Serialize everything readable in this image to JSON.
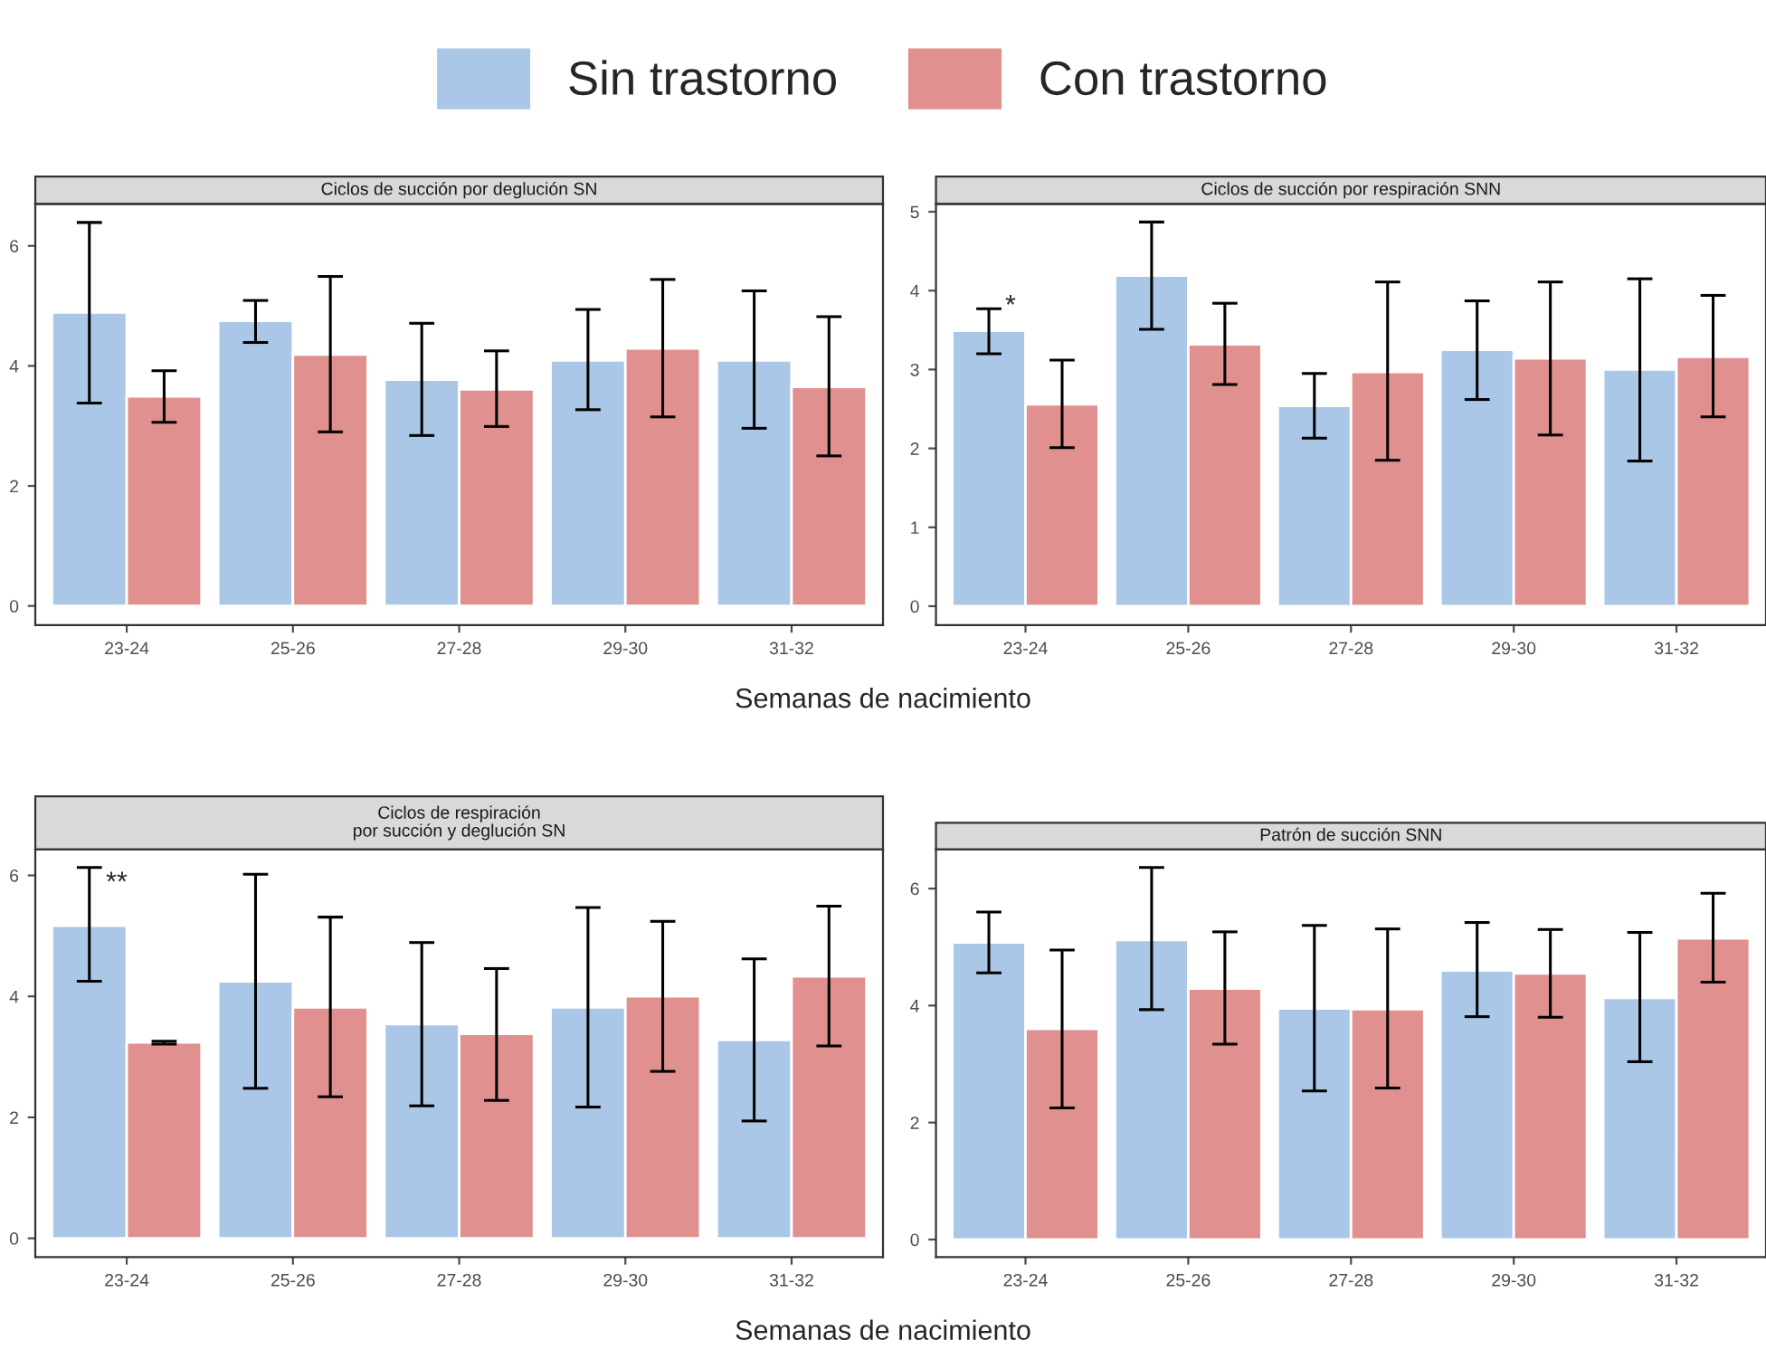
{
  "chart_data": [
    {
      "type": "bar",
      "title": "Ciclos de succión por deglución SN",
      "xlabel": "Semanas de nacimiento",
      "legend": "top",
      "grid": false,
      "categories": [
        "23-24",
        "25-26",
        "27-28",
        "29-30",
        "31-32"
      ],
      "ylim": [
        -0.32,
        6.7
      ],
      "yticks": [
        0,
        2,
        4,
        6
      ],
      "series": [
        {
          "name": "Sin trastorno",
          "color": "#aac7e8",
          "values": [
            4.89,
            4.75,
            3.77,
            4.09,
            4.09
          ],
          "errors": [
            [
              3.38,
              6.39
            ],
            [
              4.39,
              5.09
            ],
            [
              2.84,
              4.71
            ],
            [
              3.27,
              4.94
            ],
            [
              2.96,
              5.25
            ]
          ]
        },
        {
          "name": "Con trastorno",
          "color": "#e0908e",
          "values": [
            3.49,
            4.19,
            3.61,
            4.29,
            3.65
          ],
          "errors": [
            [
              3.06,
              3.92
            ],
            [
              2.9,
              5.49
            ],
            [
              2.99,
              4.25
            ],
            [
              3.15,
              5.44
            ],
            [
              2.5,
              4.82
            ]
          ]
        }
      ]
    },
    {
      "type": "bar",
      "title": "Ciclos de succión por respiración SNN",
      "grid": false,
      "categories": [
        "23-24",
        "25-26",
        "27-28",
        "29-30",
        "31-32"
      ],
      "ylim": [
        -0.24,
        5.1
      ],
      "yticks": [
        0,
        1,
        2,
        3,
        4,
        5
      ],
      "annotations": [
        "*"
      ],
      "series": [
        {
          "color": "#aac7e8",
          "values": [
            3.49,
            4.19,
            2.54,
            3.25,
            3.0
          ],
          "errors": [
            [
              3.2,
              3.77
            ],
            [
              3.51,
              4.87
            ],
            [
              2.13,
              2.95
            ],
            [
              2.62,
              3.87
            ],
            [
              1.84,
              4.15
            ]
          ]
        },
        {
          "color": "#e0908e",
          "values": [
            2.56,
            3.32,
            2.97,
            3.14,
            3.16
          ],
          "errors": [
            [
              2.01,
              3.12
            ],
            [
              2.81,
              3.84
            ],
            [
              1.85,
              4.11
            ],
            [
              2.17,
              4.11
            ],
            [
              2.4,
              3.94
            ]
          ]
        }
      ]
    },
    {
      "type": "bar",
      "title": "Ciclos de respiración\npor succión y deglución SN",
      "xlabel": "Semanas de nacimiento",
      "grid": false,
      "categories": [
        "23-24",
        "25-26",
        "27-28",
        "29-30",
        "31-32"
      ],
      "ylim": [
        -0.31,
        6.43
      ],
      "yticks": [
        0,
        2,
        4,
        6
      ],
      "annotations": [
        "**"
      ],
      "series": [
        {
          "color": "#aac7e8",
          "values": [
            5.17,
            4.25,
            3.54,
            3.82,
            3.28
          ],
          "errors": [
            [
              4.25,
              6.13
            ],
            [
              2.48,
              6.02
            ],
            [
              2.19,
              4.89
            ],
            [
              2.17,
              5.47
            ],
            [
              1.94,
              4.62
            ]
          ]
        },
        {
          "color": "#e0908e",
          "values": [
            3.24,
            3.82,
            3.38,
            4.0,
            4.33
          ],
          "errors": [
            [
              3.21,
              3.26
            ],
            [
              2.34,
              5.31
            ],
            [
              2.28,
              4.46
            ],
            [
              2.76,
              5.24
            ],
            [
              3.18,
              5.49
            ]
          ]
        }
      ]
    },
    {
      "type": "bar",
      "title": "Patrón de succión SNN",
      "grid": false,
      "categories": [
        "23-24",
        "25-26",
        "27-28",
        "29-30",
        "31-32"
      ],
      "ylim": [
        -0.3,
        6.67
      ],
      "yticks": [
        0,
        2,
        4,
        6
      ],
      "series": [
        {
          "color": "#aac7e8",
          "values": [
            5.08,
            5.12,
            3.95,
            4.6,
            4.13
          ],
          "errors": [
            [
              4.56,
              5.6
            ],
            [
              3.93,
              6.36
            ],
            [
              2.54,
              5.37
            ],
            [
              3.81,
              5.42
            ],
            [
              3.04,
              5.25
            ]
          ]
        },
        {
          "color": "#e0908e",
          "values": [
            3.6,
            4.29,
            3.94,
            4.55,
            5.15
          ],
          "errors": [
            [
              2.25,
              4.95
            ],
            [
              3.34,
              5.26
            ],
            [
              2.59,
              5.31
            ],
            [
              3.8,
              5.3
            ],
            [
              4.4,
              5.92
            ]
          ]
        }
      ]
    }
  ]
}
